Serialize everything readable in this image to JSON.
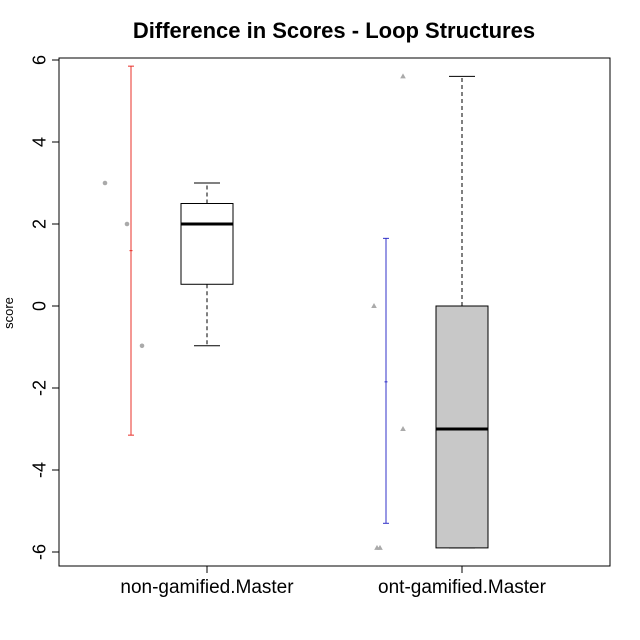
{
  "chart_data": {
    "type": "box",
    "title": "Difference in Scores - Loop Structures",
    "ylabel": "score",
    "xlabel": "",
    "ylim": [
      -6.3,
      6.2
    ],
    "yticks": [
      -6,
      -4,
      -2,
      0,
      2,
      4,
      6
    ],
    "ytick_labels": [
      "-6",
      "-4",
      "-2",
      "0",
      "2",
      "4",
      "6"
    ],
    "categories": [
      "non-gamified.Master",
      "ont-gamified.Master"
    ],
    "grid": false,
    "legend": "none",
    "boxes": [
      {
        "category": "non-gamified.Master",
        "whisker_low": -0.97,
        "q1": 0.53,
        "median": 2.0,
        "q3": 2.5,
        "whisker_high": 3.0,
        "fill": "#ffffff"
      },
      {
        "category": "ont-gamified.Master",
        "whisker_low": -5.9,
        "q1": -5.9,
        "median": -3.0,
        "q3": 0.0,
        "whisker_high": 5.6,
        "fill": "#c8c8c8"
      }
    ],
    "intervals": [
      {
        "category": "non-gamified.Master",
        "low": -3.15,
        "mid": 1.35,
        "high": 5.85,
        "color": "#e8302a"
      },
      {
        "category": "ont-gamified.Master",
        "low": -5.3,
        "mid": -1.85,
        "high": 1.65,
        "color": "#3030c8"
      }
    ],
    "points": [
      {
        "category": "non-gamified.Master",
        "values": [
          3.0,
          2.0,
          -0.97
        ],
        "jitter": [
          -0.12,
          0.1,
          0.25
        ],
        "shape": "circle",
        "color": "#aaaaaa"
      },
      {
        "category": "ont-gamified.Master",
        "values": [
          5.6,
          0.0,
          -3.0,
          -5.9,
          -5.9
        ],
        "jitter": [
          0.31,
          0.02,
          0.31,
          0.05,
          0.08
        ],
        "shape": "triangle",
        "color": "#aaaaaa"
      }
    ]
  }
}
